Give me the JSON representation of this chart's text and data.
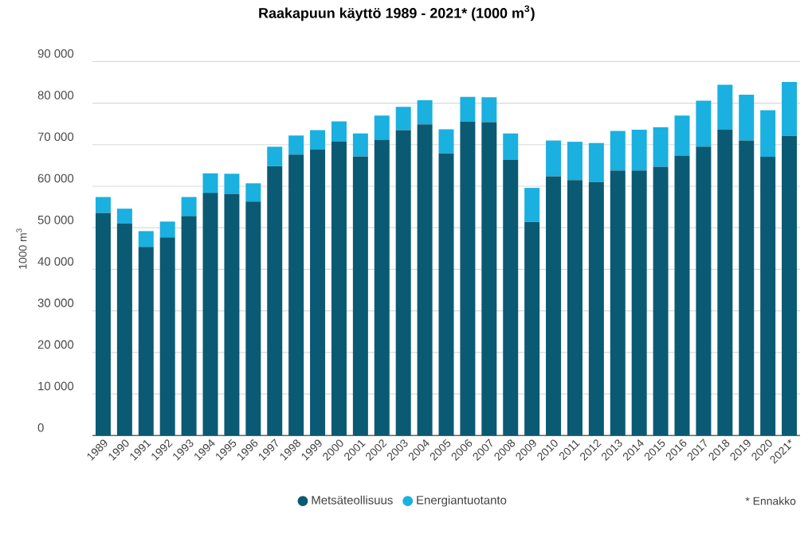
{
  "chart_data": {
    "type": "bar",
    "stacked": true,
    "title": "**Raakapuun käyttö 1989 - 2021* (1000 m$^{3}$)**",
    "ylabel": "1000 m$^{3}$",
    "categories": [
      "1989",
      "1990",
      "1991",
      "1992",
      "1993",
      "1994",
      "1995",
      "1996",
      "1997",
      "1998",
      "1999",
      "2000",
      "2001",
      "2002",
      "2003",
      "2004",
      "2005",
      "2006",
      "2007",
      "2008",
      "2009",
      "2010",
      "2011",
      "2012",
      "2013",
      "2014",
      "2015",
      "2016",
      "2017",
      "2018",
      "2019",
      "2020",
      "2021*"
    ],
    "series": [
      {
        "name": "Metsäteollisuus",
        "color": "#0b5a73",
        "values": [
          53600,
          51000,
          45400,
          47700,
          52800,
          58400,
          58200,
          56300,
          64800,
          67600,
          68800,
          70700,
          67200,
          71200,
          73500,
          74900,
          67900,
          75500,
          75400,
          66300,
          51400,
          62400,
          61500,
          61000,
          63800,
          63800,
          64700,
          67300,
          69500,
          73600,
          71000,
          67100,
          72100
        ]
      },
      {
        "name": "Energiantuotanto",
        "color": "#1ab0e0",
        "values": [
          3800,
          3600,
          3800,
          3800,
          4600,
          4700,
          4800,
          4400,
          4700,
          4600,
          4700,
          4900,
          5500,
          5800,
          5600,
          5800,
          5800,
          6000,
          6000,
          6400,
          8200,
          8600,
          9200,
          9400,
          9500,
          9800,
          9500,
          9700,
          11100,
          10800,
          11000,
          11200,
          13000
        ]
      }
    ],
    "ylim": [
      0,
      90000
    ],
    "yticks": [
      0,
      {
        "value": 10000,
        "label": "10 000"
      },
      {
        "value": 20000,
        "label": "20 000"
      },
      {
        "value": 30000,
        "label": "30 000"
      },
      {
        "value": 40000,
        "label": "40 000"
      },
      {
        "value": 50000,
        "label": "50 000"
      },
      {
        "value": 60000,
        "label": "60 000"
      },
      {
        "value": 70000,
        "label": "70 000"
      },
      {
        "value": 80000,
        "label": "80 000"
      },
      {
        "value": 90000,
        "label": "90 000"
      }
    ],
    "grid": "y",
    "legend": "bottom",
    "annotations": [
      "* Ennakko"
    ]
  }
}
